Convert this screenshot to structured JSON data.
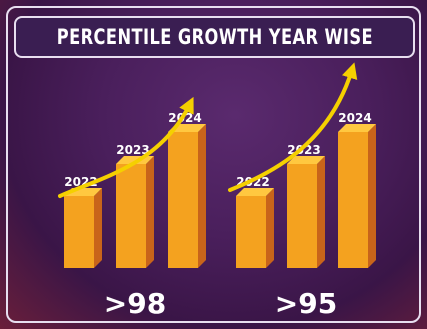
{
  "chart_data": {
    "type": "bar",
    "title": "PERCENTILE GROWTH YEAR WISE",
    "groups": [
      {
        "label": ">98",
        "categories": [
          "2022",
          "2023",
          "2024"
        ],
        "values": [
          1,
          2,
          3
        ]
      },
      {
        "label": ">95",
        "categories": [
          "2022",
          "2023",
          "2024"
        ],
        "values": [
          1,
          2,
          3
        ]
      }
    ],
    "colors": {
      "bar_top": "#ffc840",
      "bar_front": "#f4a21f",
      "bar_side": "#c8641a",
      "arrow": "#f5d000",
      "title_bg": "#3a1e52"
    }
  }
}
